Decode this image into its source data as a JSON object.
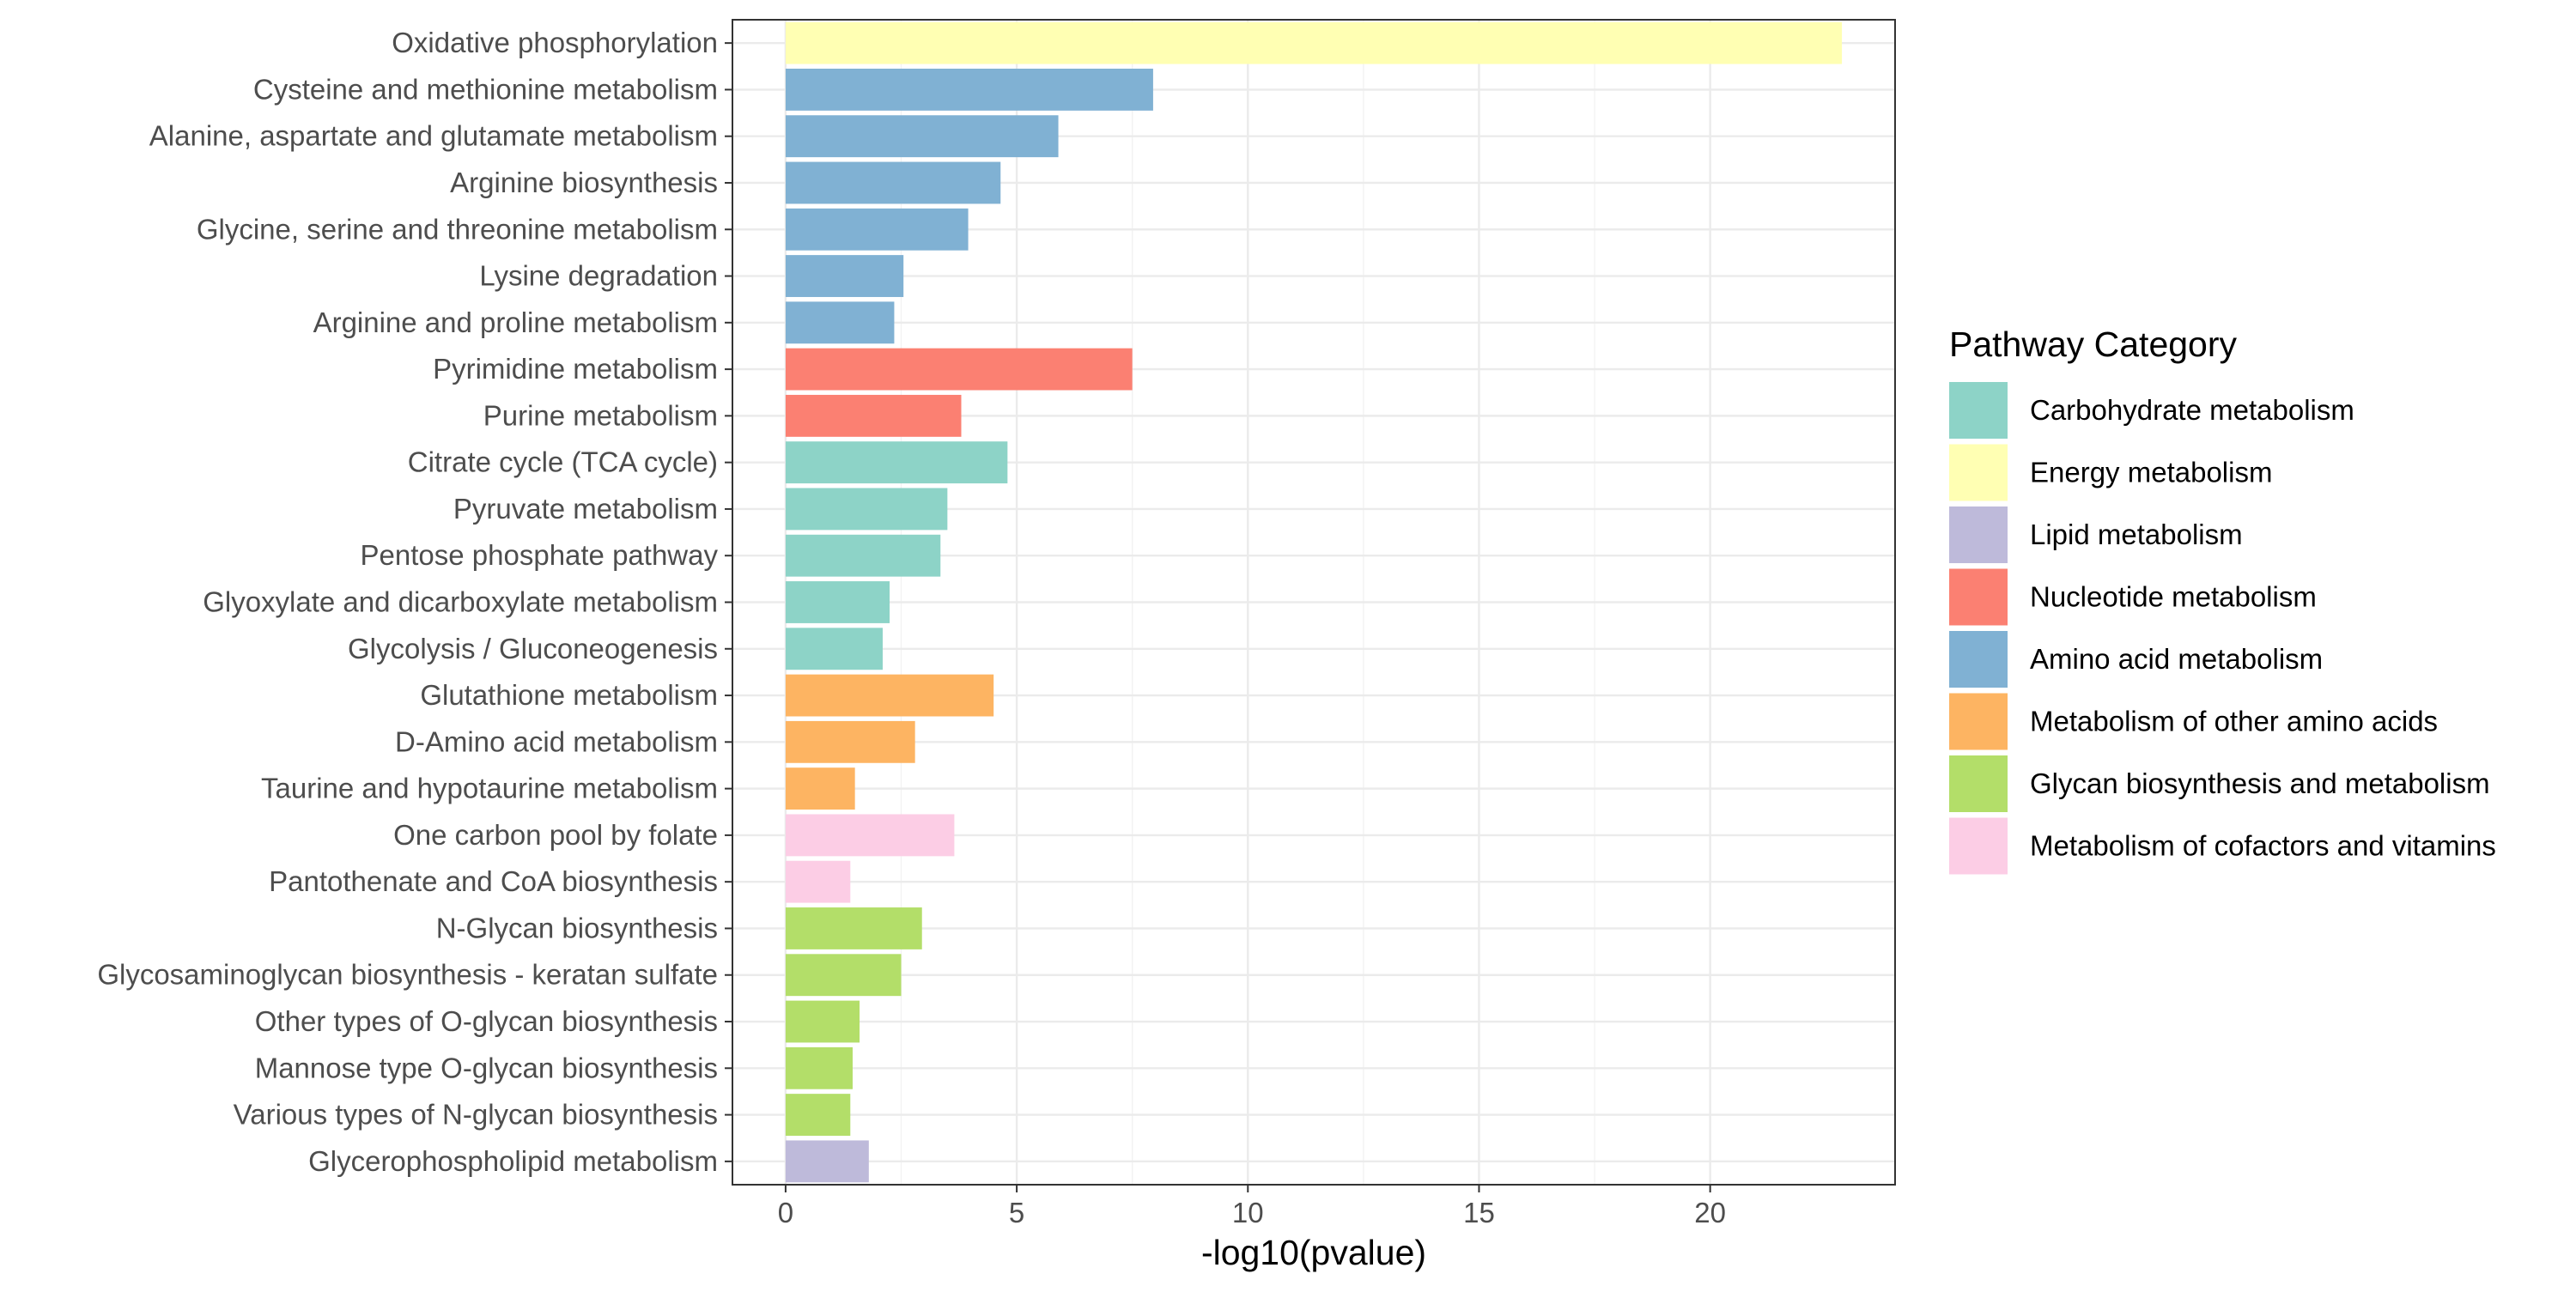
{
  "chart_data": {
    "type": "bar",
    "orientation": "horizontal",
    "categories": [
      "Oxidative phosphorylation",
      "Cysteine and methionine metabolism",
      "Alanine, aspartate and glutamate metabolism",
      "Arginine biosynthesis",
      "Glycine, serine and threonine metabolism",
      "Lysine degradation",
      "Arginine and proline metabolism",
      "Pyrimidine metabolism",
      "Purine metabolism",
      "Citrate cycle (TCA cycle)",
      "Pyruvate metabolism",
      "Pentose phosphate pathway",
      "Glyoxylate and dicarboxylate metabolism",
      "Glycolysis / Gluconeogenesis",
      "Glutathione metabolism",
      "D-Amino acid metabolism",
      "Taurine and hypotaurine metabolism",
      "One carbon pool by folate",
      "Pantothenate and CoA biosynthesis",
      "N-Glycan biosynthesis",
      "Glycosaminoglycan biosynthesis - keratan sulfate",
      "Other types of O-glycan biosynthesis",
      "Mannose type O-glycan biosynthesis",
      "Various types of N-glycan biosynthesis",
      "Glycerophospholipid metabolism"
    ],
    "values": [
      22.85,
      7.95,
      5.9,
      4.65,
      3.95,
      2.55,
      2.35,
      7.5,
      3.8,
      4.8,
      3.5,
      3.35,
      2.25,
      2.1,
      4.5,
      2.8,
      1.5,
      3.65,
      1.4,
      2.95,
      2.5,
      1.6,
      1.45,
      1.4,
      1.8
    ],
    "value_categories": [
      "Energy metabolism",
      "Amino acid metabolism",
      "Amino acid metabolism",
      "Amino acid metabolism",
      "Amino acid metabolism",
      "Amino acid metabolism",
      "Amino acid metabolism",
      "Nucleotide metabolism",
      "Nucleotide metabolism",
      "Carbohydrate metabolism",
      "Carbohydrate metabolism",
      "Carbohydrate metabolism",
      "Carbohydrate metabolism",
      "Carbohydrate metabolism",
      "Metabolism of other amino acids",
      "Metabolism of other amino acids",
      "Metabolism of other amino acids",
      "Metabolism of cofactors and vitamins",
      "Metabolism of cofactors and vitamins",
      "Glycan biosynthesis and metabolism",
      "Glycan biosynthesis and metabolism",
      "Glycan biosynthesis and metabolism",
      "Glycan biosynthesis and metabolism",
      "Glycan biosynthesis and metabolism",
      "Lipid metabolism"
    ],
    "title": "",
    "xlabel": "-log10(pvalue)",
    "ylabel": "",
    "xlim": [
      -1.15,
      24.0
    ],
    "xticks": [
      0,
      5,
      10,
      15,
      20
    ],
    "grid": true,
    "legend": {
      "title": "Pathway Category",
      "position": "right",
      "entries": [
        {
          "name": "Carbohydrate metabolism",
          "color": "#8DD3C7"
        },
        {
          "name": "Energy metabolism",
          "color": "#FFFFB3"
        },
        {
          "name": "Lipid metabolism",
          "color": "#BEBADA"
        },
        {
          "name": "Nucleotide metabolism",
          "color": "#FB8072"
        },
        {
          "name": "Amino acid metabolism",
          "color": "#80B1D3"
        },
        {
          "name": "Metabolism of other amino acids",
          "color": "#FDB462"
        },
        {
          "name": "Glycan biosynthesis and metabolism",
          "color": "#B3DE69"
        },
        {
          "name": "Metabolism of cofactors and vitamins",
          "color": "#FCCDE5"
        }
      ]
    }
  }
}
